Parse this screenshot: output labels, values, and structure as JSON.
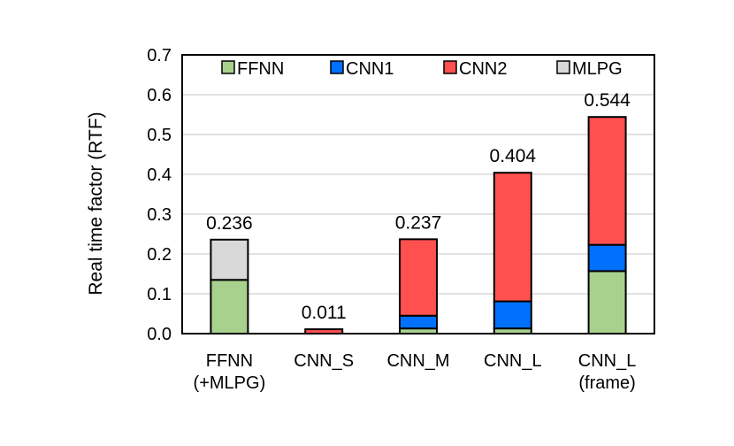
{
  "chart_data": {
    "type": "bar",
    "stacked": true,
    "title": "",
    "xlabel": "",
    "ylabel": "Real time factor (RTF)",
    "ylim": [
      0,
      0.7
    ],
    "yticks": [
      "0.0",
      "0.1",
      "0.2",
      "0.3",
      "0.4",
      "0.5",
      "0.6",
      "0.7"
    ],
    "grid": true,
    "legend_position": "top",
    "categories": [
      [
        "FFNN",
        "(+MLPG)"
      ],
      [
        "CNN_S"
      ],
      [
        "CNN_M"
      ],
      [
        "CNN_L"
      ],
      [
        "CNN_L",
        "(frame)"
      ]
    ],
    "series": [
      {
        "name": "FFNN",
        "color": "#a9d18e",
        "values": [
          0.135,
          0.0,
          0.013,
          0.013,
          0.157
        ]
      },
      {
        "name": "CNN1",
        "color": "#0070ff",
        "values": [
          0.0,
          0.0,
          0.032,
          0.068,
          0.066
        ]
      },
      {
        "name": "CNN2",
        "color": "#ff5050",
        "values": [
          0.0,
          0.011,
          0.192,
          0.323,
          0.321
        ]
      },
      {
        "name": "MLPG",
        "color": "#d9d9d9",
        "values": [
          0.101,
          0.0,
          0.0,
          0.0,
          0.0
        ]
      }
    ],
    "totals": [
      "0.236",
      "0.011",
      "0.237",
      "0.404",
      "0.544"
    ]
  }
}
